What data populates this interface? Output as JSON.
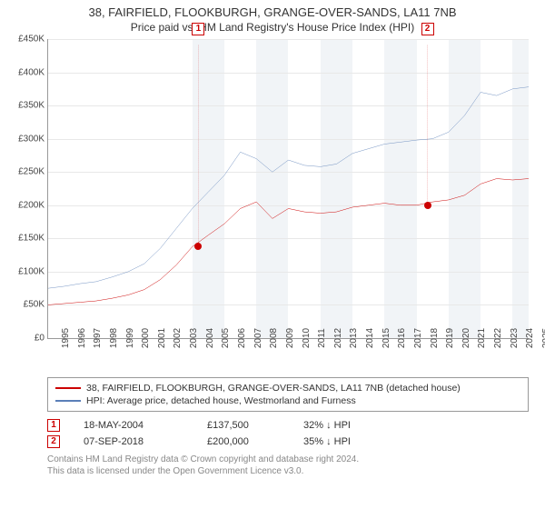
{
  "title": {
    "line1": "38, FAIRFIELD, FLOOKBURGH, GRANGE-OVER-SANDS, LA11 7NB",
    "line2": "Price paid vs. HM Land Registry's House Price Index (HPI)"
  },
  "chart": {
    "type": "line",
    "background_color": "#ffffff",
    "grid_color": "#e8e8e8",
    "axis_color": "#999999",
    "shade_color": "rgba(200,210,225,0.25)",
    "ylim": [
      0,
      450000
    ],
    "ytick_step": 50000,
    "yticks": [
      "£0",
      "£50K",
      "£100K",
      "£150K",
      "£200K",
      "£250K",
      "£300K",
      "£350K",
      "£400K",
      "£450K"
    ],
    "xlim": [
      1995,
      2025
    ],
    "xticks": [
      1995,
      1996,
      1997,
      1998,
      1999,
      2000,
      2001,
      2002,
      2003,
      2004,
      2005,
      2006,
      2007,
      2008,
      2009,
      2010,
      2011,
      2012,
      2013,
      2014,
      2015,
      2016,
      2017,
      2018,
      2019,
      2020,
      2021,
      2022,
      2023,
      2024,
      2025
    ],
    "shaded_segments": [
      [
        2004,
        2006
      ],
      [
        2008,
        2010
      ],
      [
        2012,
        2014
      ],
      [
        2016,
        2018
      ],
      [
        2020,
        2022
      ],
      [
        2024,
        2025
      ]
    ],
    "series": [
      {
        "id": "property",
        "color": "#cc0000",
        "line_width": 1.6,
        "points": [
          [
            1995,
            50000
          ],
          [
            1996,
            52000
          ],
          [
            1997,
            54000
          ],
          [
            1998,
            56000
          ],
          [
            1999,
            60000
          ],
          [
            2000,
            65000
          ],
          [
            2001,
            73000
          ],
          [
            2002,
            88000
          ],
          [
            2003,
            110000
          ],
          [
            2004,
            137500
          ],
          [
            2005,
            155000
          ],
          [
            2006,
            172000
          ],
          [
            2007,
            195000
          ],
          [
            2008,
            205000
          ],
          [
            2009,
            180000
          ],
          [
            2010,
            195000
          ],
          [
            2011,
            190000
          ],
          [
            2012,
            188000
          ],
          [
            2013,
            190000
          ],
          [
            2014,
            197000
          ],
          [
            2015,
            200000
          ],
          [
            2016,
            203000
          ],
          [
            2017,
            200000
          ],
          [
            2018,
            200000
          ],
          [
            2019,
            205000
          ],
          [
            2020,
            208000
          ],
          [
            2021,
            215000
          ],
          [
            2022,
            232000
          ],
          [
            2023,
            240000
          ],
          [
            2024,
            238000
          ],
          [
            2025,
            240000
          ]
        ]
      },
      {
        "id": "hpi",
        "color": "#5b7fb8",
        "line_width": 1.4,
        "points": [
          [
            1995,
            75000
          ],
          [
            1996,
            78000
          ],
          [
            1997,
            82000
          ],
          [
            1998,
            85000
          ],
          [
            1999,
            92000
          ],
          [
            2000,
            100000
          ],
          [
            2001,
            112000
          ],
          [
            2002,
            135000
          ],
          [
            2003,
            165000
          ],
          [
            2004,
            195000
          ],
          [
            2005,
            220000
          ],
          [
            2006,
            245000
          ],
          [
            2007,
            280000
          ],
          [
            2008,
            270000
          ],
          [
            2009,
            250000
          ],
          [
            2010,
            268000
          ],
          [
            2011,
            260000
          ],
          [
            2012,
            258000
          ],
          [
            2013,
            262000
          ],
          [
            2014,
            278000
          ],
          [
            2015,
            285000
          ],
          [
            2016,
            292000
          ],
          [
            2017,
            295000
          ],
          [
            2018,
            298000
          ],
          [
            2019,
            300000
          ],
          [
            2020,
            310000
          ],
          [
            2021,
            335000
          ],
          [
            2022,
            370000
          ],
          [
            2023,
            365000
          ],
          [
            2024,
            375000
          ],
          [
            2025,
            378000
          ]
        ]
      }
    ],
    "sale_markers": [
      {
        "n": 1,
        "label": "1",
        "year": 2004.38,
        "price": 137500
      },
      {
        "n": 2,
        "label": "2",
        "year": 2018.68,
        "price": 200000
      }
    ]
  },
  "legend": {
    "items": [
      {
        "color": "#cc0000",
        "text": "38, FAIRFIELD, FLOOKBURGH, GRANGE-OVER-SANDS, LA11 7NB (detached house)"
      },
      {
        "color": "#5b7fb8",
        "text": "HPI: Average price, detached house, Westmorland and Furness"
      }
    ]
  },
  "sales": [
    {
      "marker": "1",
      "date": "18-MAY-2004",
      "price": "£137,500",
      "rel": "32% ↓ HPI"
    },
    {
      "marker": "2",
      "date": "07-SEP-2018",
      "price": "£200,000",
      "rel": "35% ↓ HPI"
    }
  ],
  "footer": {
    "line1": "Contains HM Land Registry data © Crown copyright and database right 2024.",
    "line2": "This data is licensed under the Open Government Licence v3.0."
  },
  "colors": {
    "marker_border": "#cc0000",
    "footer_text": "#888888"
  }
}
